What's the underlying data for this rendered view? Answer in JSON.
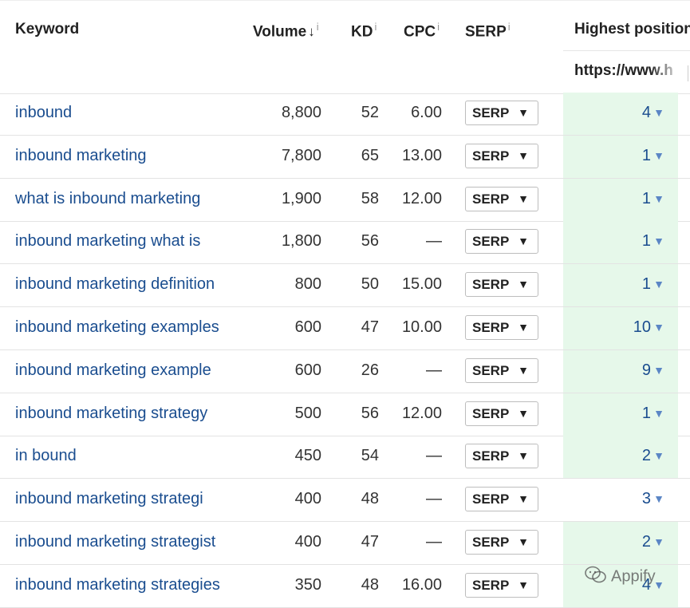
{
  "header": {
    "keyword": "Keyword",
    "volume": "Volume",
    "volume_sort": "↓",
    "kd": "KD",
    "cpc": "CPC",
    "serp": "SERP",
    "info": "i",
    "highest_position": "Highest position",
    "url": "https://www.h"
  },
  "rows": [
    {
      "keyword": "inbound",
      "volume": "8,800",
      "kd": "52",
      "cpc": "6.00",
      "serp": "SERP",
      "position": "4",
      "highlight": true
    },
    {
      "keyword": "inbound marketing",
      "volume": "7,800",
      "kd": "65",
      "cpc": "13.00",
      "serp": "SERP",
      "position": "1",
      "highlight": true
    },
    {
      "keyword": "what is inbound marketing",
      "volume": "1,900",
      "kd": "58",
      "cpc": "12.00",
      "serp": "SERP",
      "position": "1",
      "highlight": true
    },
    {
      "keyword": "inbound marketing what is",
      "volume": "1,800",
      "kd": "56",
      "cpc": "—",
      "serp": "SERP",
      "position": "1",
      "highlight": true
    },
    {
      "keyword": "inbound marketing definition",
      "volume": "800",
      "kd": "50",
      "cpc": "15.00",
      "serp": "SERP",
      "position": "1",
      "highlight": true
    },
    {
      "keyword": "inbound marketing examples",
      "volume": "600",
      "kd": "47",
      "cpc": "10.00",
      "serp": "SERP",
      "position": "10",
      "highlight": true
    },
    {
      "keyword": "inbound marketing example",
      "volume": "600",
      "kd": "26",
      "cpc": "—",
      "serp": "SERP",
      "position": "9",
      "highlight": true
    },
    {
      "keyword": "inbound marketing strategy",
      "volume": "500",
      "kd": "56",
      "cpc": "12.00",
      "serp": "SERP",
      "position": "1",
      "highlight": true
    },
    {
      "keyword": "in bound",
      "volume": "450",
      "kd": "54",
      "cpc": "—",
      "serp": "SERP",
      "position": "2",
      "highlight": true
    },
    {
      "keyword": "inbound marketing strategi",
      "volume": "400",
      "kd": "48",
      "cpc": "—",
      "serp": "SERP",
      "position": "3",
      "highlight": false
    },
    {
      "keyword": "inbound marketing strategist",
      "volume": "400",
      "kd": "47",
      "cpc": "—",
      "serp": "SERP",
      "position": "2",
      "highlight": true
    },
    {
      "keyword": "inbound marketing strategies",
      "volume": "350",
      "kd": "48",
      "cpc": "16.00",
      "serp": "SERP",
      "position": "4",
      "highlight": true
    }
  ],
  "icons": {
    "dropdown": "caret-down-icon",
    "position_caret": "caret-down-icon",
    "watermark": "wechat-icon"
  },
  "colors": {
    "link": "#1a4d8f",
    "highlight": "#e6f8ea"
  },
  "watermark": {
    "text": "Appify"
  }
}
